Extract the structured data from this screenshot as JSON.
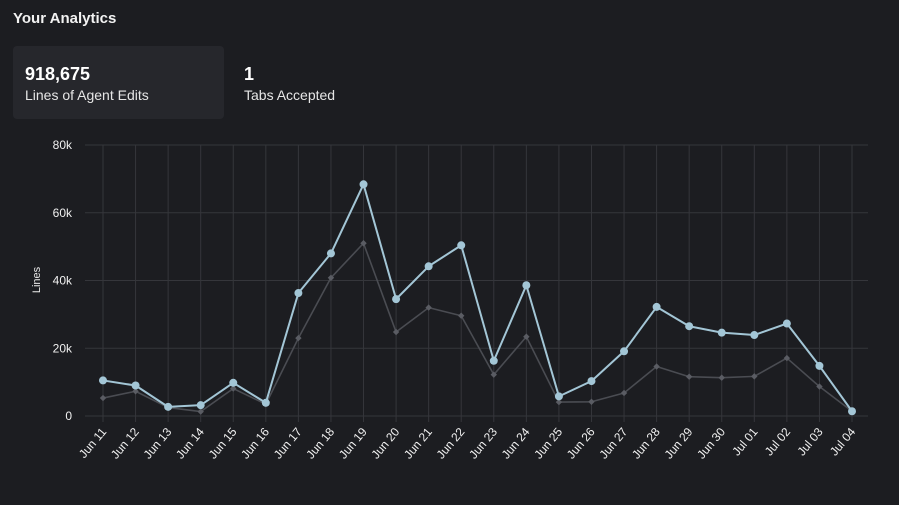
{
  "header": {
    "title": "Your Analytics"
  },
  "stats": [
    {
      "value": "918,675",
      "label": "Lines of Agent Edits"
    },
    {
      "value": "1",
      "label": "Tabs Accepted"
    }
  ],
  "colors": {
    "primary_series": "#a3c6d6",
    "secondary_series": "#4a4c52",
    "grid": "#35363b",
    "background": "#1c1d21"
  },
  "chart_data": {
    "type": "line",
    "title": "",
    "xlabel": "",
    "ylabel": "Lines",
    "ylim": [
      0,
      80000
    ],
    "yticks": [
      0,
      20000,
      40000,
      60000,
      80000
    ],
    "ytick_labels": [
      "0",
      "20k",
      "40k",
      "60k",
      "80k"
    ],
    "grid": true,
    "categories": [
      "Jun 11",
      "Jun 12",
      "Jun 13",
      "Jun 14",
      "Jun 15",
      "Jun 16",
      "Jun 17",
      "Jun 18",
      "Jun 19",
      "Jun 20",
      "Jun 21",
      "Jun 22",
      "Jun 23",
      "Jun 24",
      "Jun 25",
      "Jun 26",
      "Jun 27",
      "Jun 28",
      "Jun 29",
      "Jun 30",
      "Jul 01",
      "Jul 02",
      "Jul 03",
      "Jul 04"
    ],
    "series": [
      {
        "values": [
          10500,
          9000,
          2700,
          3200,
          9800,
          3900,
          36300,
          48000,
          68400,
          34500,
          44200,
          50400,
          16300,
          38600,
          5800,
          10300,
          19100,
          32200,
          26500,
          24600,
          23900,
          27300,
          14800,
          1400
        ]
      },
      {
        "values": [
          5300,
          7300,
          2500,
          1300,
          8100,
          3500,
          23000,
          40800,
          51000,
          24800,
          32000,
          29600,
          12200,
          23400,
          4100,
          4200,
          6800,
          14600,
          11600,
          11300,
          11700,
          17100,
          8700,
          1400
        ]
      }
    ]
  }
}
